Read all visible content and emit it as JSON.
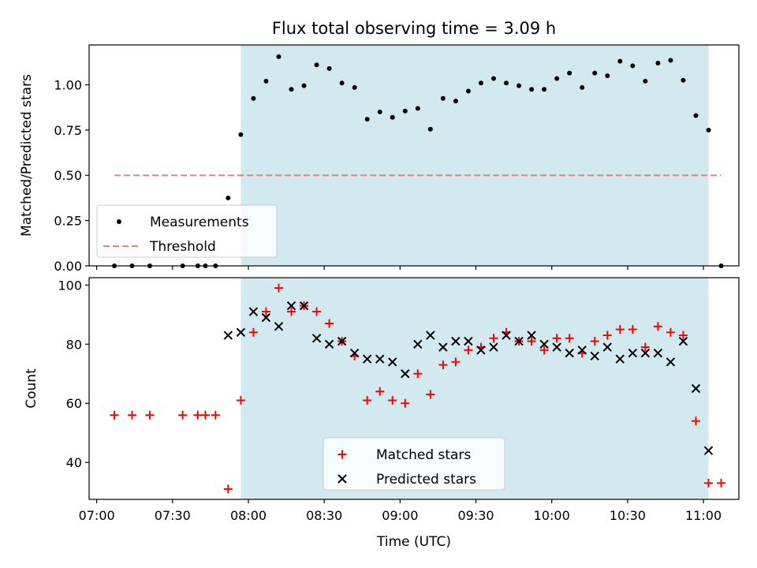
{
  "chart_data": [
    {
      "type": "scatter",
      "title": "Flux total observing time = 3.09 h",
      "xlabel": "",
      "ylabel": "Matched/Predicted stars",
      "xlim": [
        "06:57",
        "11:14"
      ],
      "ylim": [
        0,
        1.22
      ],
      "yticks": [
        0.0,
        0.25,
        0.5,
        0.75,
        1.0
      ],
      "ytick_labels": [
        "0.00",
        "0.25",
        "0.50",
        "0.75",
        "1.00"
      ],
      "observing_window": {
        "start": "07:57",
        "end": "11:02",
        "color": "#d3e9f0"
      },
      "legend": {
        "position": "lower-left",
        "entries": [
          "Measurements",
          "Threshold"
        ]
      },
      "series": [
        {
          "name": "Measurements",
          "marker": "dot",
          "color": "#000000",
          "x": [
            "07:07",
            "07:14",
            "07:21",
            "07:34",
            "07:40",
            "07:43",
            "07:47",
            "07:52",
            "07:57",
            "08:02",
            "08:07",
            "08:12",
            "08:17",
            "08:22",
            "08:27",
            "08:32",
            "08:37",
            "08:42",
            "08:47",
            "08:52",
            "08:57",
            "09:02",
            "09:07",
            "09:12",
            "09:17",
            "09:22",
            "09:27",
            "09:32",
            "09:37",
            "09:42",
            "09:47",
            "09:52",
            "09:57",
            "10:02",
            "10:07",
            "10:12",
            "10:17",
            "10:22",
            "10:27",
            "10:32",
            "10:37",
            "10:42",
            "10:47",
            "10:52",
            "10:57",
            "11:02",
            "11:07"
          ],
          "values": [
            0.0,
            0.0,
            0.0,
            0.0,
            0.0,
            0.0,
            0.0,
            0.375,
            0.725,
            0.925,
            1.02,
            1.155,
            0.975,
            0.995,
            1.11,
            1.09,
            1.01,
            0.985,
            0.81,
            0.85,
            0.82,
            0.855,
            0.87,
            0.755,
            0.925,
            0.91,
            0.965,
            1.01,
            1.035,
            1.01,
            0.995,
            0.975,
            0.975,
            1.035,
            1.065,
            0.985,
            1.065,
            1.05,
            1.13,
            1.105,
            1.02,
            1.12,
            1.135,
            1.025,
            0.83,
            0.75,
            0.0
          ]
        },
        {
          "name": "Threshold",
          "marker": "dashed-line",
          "color": "#f08080",
          "x": [
            "07:07",
            "11:07"
          ],
          "values": [
            0.5,
            0.5
          ]
        }
      ]
    },
    {
      "type": "scatter",
      "title": "",
      "xlabel": "Time (UTC)",
      "ylabel": "Count",
      "xlim": [
        "06:57",
        "11:14"
      ],
      "ylim": [
        27.5,
        102.5
      ],
      "yticks": [
        40,
        60,
        80,
        100
      ],
      "xticks": [
        "07:00",
        "07:30",
        "08:00",
        "08:30",
        "09:00",
        "09:30",
        "10:00",
        "10:30",
        "11:00"
      ],
      "observing_window": {
        "start": "07:57",
        "end": "11:02",
        "color": "#d3e9f0"
      },
      "legend": {
        "position": "lower-center",
        "entries": [
          "Matched stars",
          "Predicted stars"
        ]
      },
      "series": [
        {
          "name": "Matched stars",
          "marker": "plus",
          "color": "#ff0000",
          "x": [
            "07:07",
            "07:14",
            "07:21",
            "07:34",
            "07:40",
            "07:43",
            "07:47",
            "07:52",
            "07:57",
            "08:02",
            "08:07",
            "08:12",
            "08:17",
            "08:22",
            "08:27",
            "08:32",
            "08:37",
            "08:42",
            "08:47",
            "08:52",
            "08:57",
            "09:02",
            "09:07",
            "09:12",
            "09:17",
            "09:22",
            "09:27",
            "09:32",
            "09:37",
            "09:42",
            "09:47",
            "09:52",
            "09:57",
            "10:02",
            "10:07",
            "10:12",
            "10:17",
            "10:22",
            "10:27",
            "10:32",
            "10:37",
            "10:42",
            "10:47",
            "10:52",
            "10:57",
            "11:02",
            "11:07"
          ],
          "values": [
            56,
            56,
            56,
            56,
            56,
            56,
            56,
            31,
            61,
            84,
            91,
            99,
            91,
            93,
            91,
            87,
            81,
            76,
            61,
            64,
            61,
            60,
            70,
            63,
            73,
            74,
            78,
            79,
            82,
            84,
            81,
            81,
            78,
            82,
            82,
            77,
            81,
            83,
            85,
            85,
            79,
            86,
            84,
            83,
            54,
            33,
            33
          ]
        },
        {
          "name": "Predicted stars",
          "marker": "x",
          "color": "#000000",
          "x": [
            "07:52",
            "07:57",
            "08:02",
            "08:07",
            "08:12",
            "08:17",
            "08:22",
            "08:27",
            "08:32",
            "08:37",
            "08:42",
            "08:47",
            "08:52",
            "08:57",
            "09:02",
            "09:07",
            "09:12",
            "09:17",
            "09:22",
            "09:27",
            "09:32",
            "09:37",
            "09:42",
            "09:47",
            "09:52",
            "09:57",
            "10:02",
            "10:07",
            "10:12",
            "10:17",
            "10:22",
            "10:27",
            "10:32",
            "10:37",
            "10:42",
            "10:47",
            "10:52",
            "10:57",
            "11:02"
          ],
          "values": [
            83,
            84,
            91,
            89,
            86,
            93,
            93,
            82,
            80,
            81,
            77,
            75,
            75,
            74,
            70,
            80,
            83,
            79,
            81,
            81,
            78,
            79,
            83,
            81,
            83,
            80,
            79,
            77,
            78,
            76,
            79,
            75,
            77,
            77,
            77,
            74,
            81,
            65,
            44
          ]
        }
      ]
    }
  ]
}
